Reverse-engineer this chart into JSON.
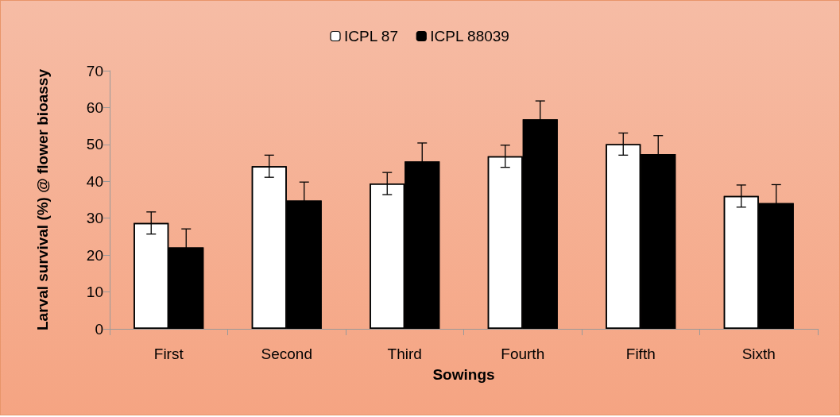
{
  "chart_data": {
    "type": "bar",
    "xlabel": "Sowings",
    "ylabel": "Larval survival (%) @ flower bioassy",
    "categories": [
      "First",
      "Second",
      "Third",
      "Fourth",
      "Fifth",
      "Sixth"
    ],
    "series": [
      {
        "name": "ICPL 87",
        "color": "#ffffff",
        "values": [
          28.7,
          44.1,
          39.4,
          46.8,
          50.1,
          36.0
        ],
        "errors": [
          3,
          3,
          3,
          3,
          3,
          3
        ]
      },
      {
        "name": "ICPL 88039",
        "color": "#000000",
        "values": [
          22.1,
          34.8,
          45.4,
          56.8,
          47.4,
          34.1
        ],
        "errors": [
          5,
          5,
          5,
          5,
          5,
          5
        ]
      }
    ],
    "ylim": [
      0,
      70
    ],
    "yticks": [
      0,
      10,
      20,
      30,
      40,
      50,
      60,
      70
    ],
    "grid": false,
    "legend": "top"
  }
}
